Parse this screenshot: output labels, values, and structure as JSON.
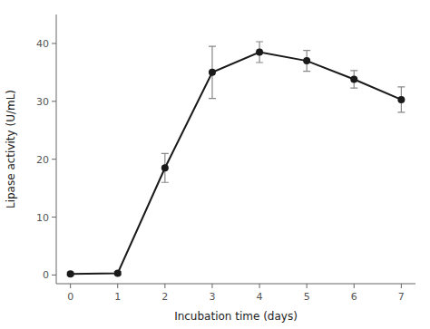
{
  "chart_data": {
    "type": "line",
    "x": [
      0,
      1,
      2,
      3,
      4,
      5,
      6,
      7
    ],
    "values": [
      0.2,
      0.3,
      18.5,
      35.0,
      38.5,
      37.0,
      33.8,
      30.3
    ],
    "errors": [
      0.3,
      0.3,
      2.5,
      4.5,
      1.8,
      1.8,
      1.5,
      2.2
    ],
    "color": "#1a1a1a",
    "marker": "o",
    "xlabel": "Incubation time (days)",
    "ylabel": "Lipase activity (U/mL)",
    "xlim": [
      -0.3,
      7.3
    ],
    "ylim": [
      -1.5,
      45
    ],
    "xticks": [
      0,
      1,
      2,
      3,
      4,
      5,
      6,
      7
    ],
    "yticks": [
      0,
      10,
      20,
      30,
      40
    ],
    "grid": false
  }
}
